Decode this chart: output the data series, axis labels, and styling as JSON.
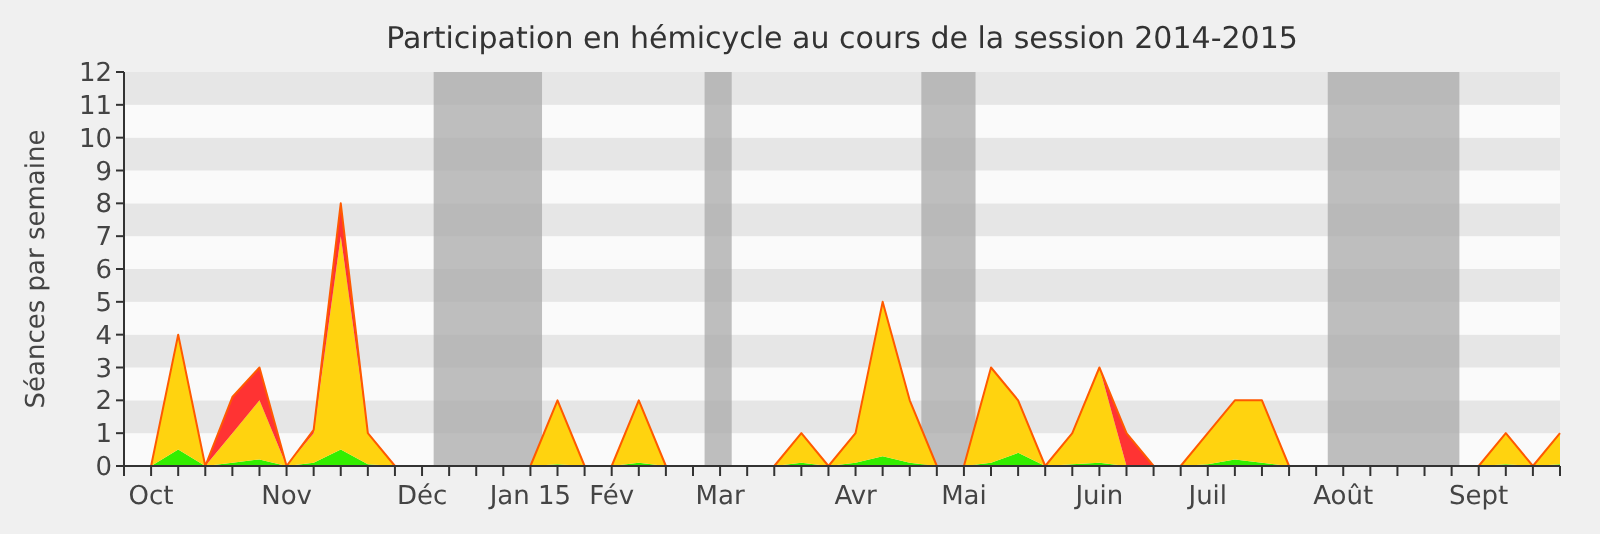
{
  "chart_data": {
    "type": "area",
    "stacked": true,
    "title": "Participation en hémicycle au cours de la session 2014-2015",
    "ylabel": "Séances par semaine",
    "x": [
      "2014-09-29",
      "2014-10-06",
      "2014-10-13",
      "2014-10-20",
      "2014-10-27",
      "2014-11-03",
      "2014-11-10",
      "2014-11-17",
      "2014-11-24",
      "2014-12-01",
      "2014-12-08",
      "2014-12-15",
      "2014-12-22",
      "2014-12-29",
      "2015-01-05",
      "2015-01-12",
      "2015-01-19",
      "2015-01-26",
      "2015-02-02",
      "2015-02-09",
      "2015-02-16",
      "2015-02-23",
      "2015-03-02",
      "2015-03-09",
      "2015-03-16",
      "2015-03-23",
      "2015-03-30",
      "2015-04-06",
      "2015-04-13",
      "2015-04-20",
      "2015-04-27",
      "2015-05-04",
      "2015-05-11",
      "2015-05-18",
      "2015-05-25",
      "2015-06-01",
      "2015-06-08",
      "2015-06-15",
      "2015-06-22",
      "2015-06-29",
      "2015-07-06",
      "2015-07-13",
      "2015-07-20",
      "2015-07-27",
      "2015-08-03",
      "2015-08-10",
      "2015-08-17",
      "2015-08-24",
      "2015-08-31",
      "2015-09-07",
      "2015-09-14",
      "2015-09-21",
      "2015-09-28",
      "2015-10-05"
    ],
    "xlim": [
      "2014-09-29",
      "2015-10-05"
    ],
    "xticks": [
      {
        "value": "2014-09-29",
        "label": null
      },
      {
        "value": "2014-10-06",
        "label": "Oct"
      },
      {
        "value": "2014-10-13",
        "label": null
      },
      {
        "value": "2014-10-20",
        "label": null
      },
      {
        "value": "2014-10-27",
        "label": null
      },
      {
        "value": "2014-11-03",
        "label": null
      },
      {
        "value": "2014-11-10",
        "label": "Nov"
      },
      {
        "value": "2014-11-17",
        "label": null
      },
      {
        "value": "2014-11-24",
        "label": null
      },
      {
        "value": "2014-12-01",
        "label": null
      },
      {
        "value": "2014-12-08",
        "label": null
      },
      {
        "value": "2014-12-15",
        "label": "Déc"
      },
      {
        "value": "2014-12-22",
        "label": null
      },
      {
        "value": "2014-12-29",
        "label": null
      },
      {
        "value": "2015-01-05",
        "label": null
      },
      {
        "value": "2015-01-12",
        "label": "Jan 15"
      },
      {
        "value": "2015-01-19",
        "label": null
      },
      {
        "value": "2015-01-26",
        "label": null
      },
      {
        "value": "2015-02-02",
        "label": "Fév"
      },
      {
        "value": "2015-02-09",
        "label": null
      },
      {
        "value": "2015-02-16",
        "label": null
      },
      {
        "value": "2015-02-23",
        "label": null
      },
      {
        "value": "2015-03-02",
        "label": "Mar"
      },
      {
        "value": "2015-03-09",
        "label": null
      },
      {
        "value": "2015-03-16",
        "label": null
      },
      {
        "value": "2015-03-23",
        "label": null
      },
      {
        "value": "2015-03-30",
        "label": null
      },
      {
        "value": "2015-04-06",
        "label": "Avr"
      },
      {
        "value": "2015-04-13",
        "label": null
      },
      {
        "value": "2015-04-20",
        "label": null
      },
      {
        "value": "2015-04-27",
        "label": null
      },
      {
        "value": "2015-05-04",
        "label": "Mai"
      },
      {
        "value": "2015-05-11",
        "label": null
      },
      {
        "value": "2015-05-18",
        "label": null
      },
      {
        "value": "2015-05-25",
        "label": null
      },
      {
        "value": "2015-06-01",
        "label": null
      },
      {
        "value": "2015-06-08",
        "label": "Juin"
      },
      {
        "value": "2015-06-15",
        "label": null
      },
      {
        "value": "2015-06-22",
        "label": null
      },
      {
        "value": "2015-06-29",
        "label": null
      },
      {
        "value": "2015-07-06",
        "label": "Juil"
      },
      {
        "value": "2015-07-13",
        "label": null
      },
      {
        "value": "2015-07-20",
        "label": null
      },
      {
        "value": "2015-07-27",
        "label": null
      },
      {
        "value": "2015-08-03",
        "label": null
      },
      {
        "value": "2015-08-10",
        "label": "Août"
      },
      {
        "value": "2015-08-17",
        "label": null
      },
      {
        "value": "2015-08-24",
        "label": null
      },
      {
        "value": "2015-08-31",
        "label": null
      },
      {
        "value": "2015-09-07",
        "label": null
      },
      {
        "value": "2015-09-14",
        "label": "Sept"
      },
      {
        "value": "2015-09-21",
        "label": null
      },
      {
        "value": "2015-09-28",
        "label": null
      },
      {
        "value": "2015-10-05",
        "label": null
      }
    ],
    "ylim": [
      0,
      12
    ],
    "yticks": [
      0,
      1,
      2,
      3,
      4,
      5,
      6,
      7,
      8,
      9,
      10,
      11,
      12
    ],
    "series": [
      {
        "color": "#33ee00",
        "values": [
          0,
          0,
          0.5,
          0,
          0.1,
          0.2,
          0,
          0.1,
          0.5,
          0.05,
          0,
          0,
          0,
          0,
          0,
          0,
          0.05,
          0,
          0,
          0.1,
          0,
          0,
          0,
          0,
          0,
          0.1,
          0,
          0.1,
          0.3,
          0.1,
          0,
          0,
          0.1,
          0.4,
          0,
          0.05,
          0.1,
          0,
          0,
          0,
          0.05,
          0.2,
          0.1,
          0,
          0,
          0,
          0,
          0,
          0,
          0,
          0,
          0.05,
          0,
          0.05
        ]
      },
      {
        "color": "#ffd30f",
        "values": [
          0,
          0,
          3.5,
          0,
          0.9,
          1.8,
          0,
          0.9,
          6.5,
          0.95,
          0,
          0,
          0,
          0,
          0,
          0,
          1.95,
          0,
          0,
          1.9,
          0,
          0,
          0,
          0,
          0,
          0.9,
          0,
          0.9,
          4.7,
          1.9,
          0,
          0,
          2.9,
          1.6,
          0,
          0.95,
          2.9,
          0,
          0,
          0,
          0.95,
          1.8,
          1.9,
          0,
          0,
          0,
          0,
          0,
          0,
          0,
          0,
          0.95,
          0,
          0.95
        ]
      },
      {
        "color": "#ff3333",
        "values": [
          0,
          0,
          0,
          0,
          1.1,
          1,
          0,
          0.1,
          1,
          0,
          0,
          0,
          0,
          0,
          0,
          0,
          0,
          0,
          0,
          0,
          0,
          0,
          0,
          0,
          0,
          0,
          0,
          0,
          0,
          0,
          0,
          0,
          0,
          0,
          0,
          0,
          0,
          1,
          0,
          0,
          0,
          0,
          0,
          0,
          0,
          0,
          0,
          0,
          0,
          0,
          0,
          0,
          0,
          0
        ]
      }
    ],
    "bands": [
      {
        "axis": "x",
        "from": "2014-12-18",
        "to": "2015-01-15",
        "color": "#aaaaaa"
      },
      {
        "axis": "x",
        "from": "2015-02-26",
        "to": "2015-03-05",
        "color": "#aaaaaa"
      },
      {
        "axis": "x",
        "from": "2015-04-23",
        "to": "2015-05-07",
        "color": "#aaaaaa"
      },
      {
        "axis": "x",
        "from": "2015-08-06",
        "to": "2015-09-09",
        "color": "#aaaaaa"
      }
    ]
  }
}
